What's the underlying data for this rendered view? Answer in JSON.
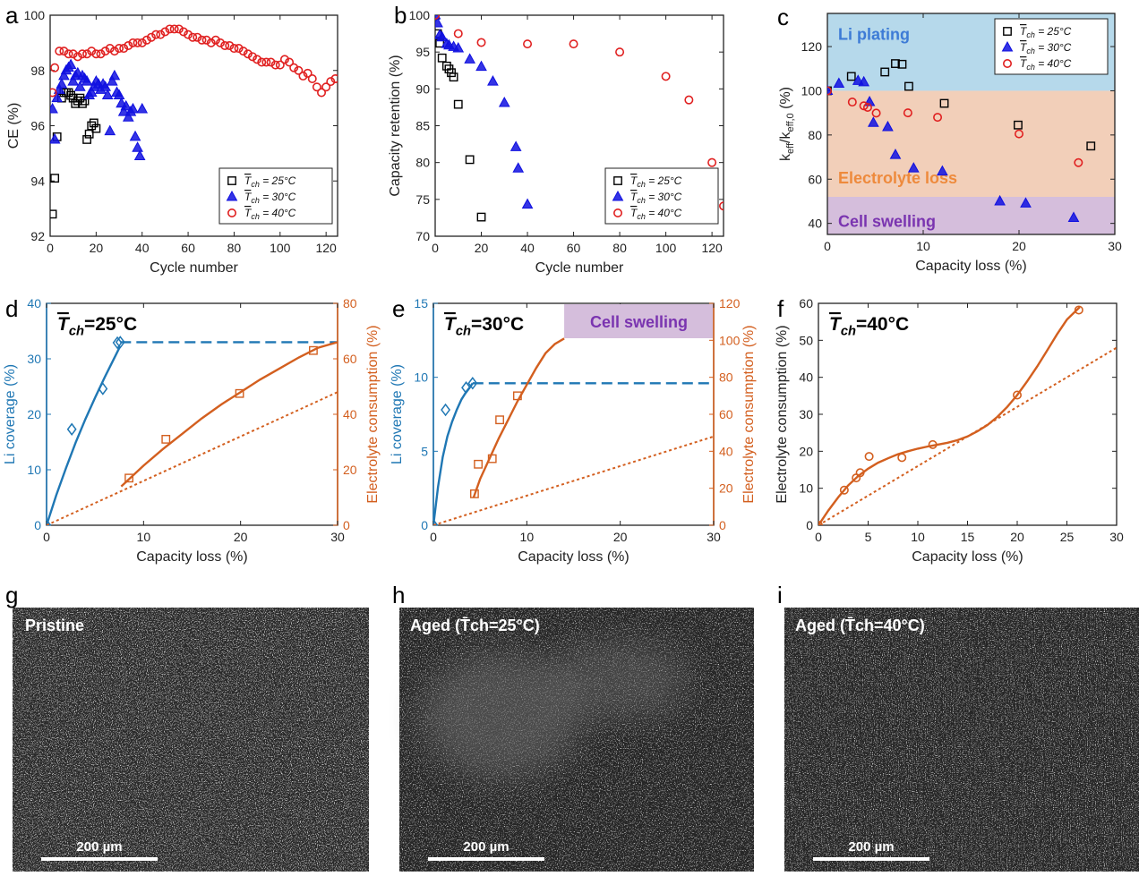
{
  "chart_data": [
    {
      "id": "a",
      "type": "scatter",
      "panel_letter": "a",
      "xlabel": "Cycle number",
      "ylabel": "CE (%)",
      "xlim": [
        0,
        125
      ],
      "ylim": [
        92,
        100
      ],
      "xticks": [
        0,
        20,
        40,
        60,
        80,
        100,
        120
      ],
      "yticks": [
        92,
        94,
        96,
        98,
        100
      ],
      "legend_position": "bottom-right",
      "series": [
        {
          "name": "T̄ch = 25°C",
          "marker": "square",
          "color": "#000000",
          "x": [
            1,
            2,
            3,
            5,
            6,
            7,
            8,
            9,
            10,
            11,
            12,
            13,
            14,
            15,
            16,
            17,
            18,
            19,
            20
          ],
          "y": [
            92.8,
            94.1,
            95.6,
            97.0,
            97.2,
            97.2,
            97.2,
            97.1,
            97.0,
            96.8,
            96.9,
            97.0,
            96.8,
            96.9,
            95.5,
            95.7,
            96.0,
            96.1,
            95.9
          ]
        },
        {
          "name": "T̄ch = 30°C",
          "marker": "triangle",
          "color": "#1010e0",
          "x": [
            1,
            2,
            3,
            4,
            5,
            6,
            7,
            8,
            9,
            10,
            11,
            12,
            13,
            14,
            15,
            16,
            17,
            18,
            19,
            20,
            21,
            22,
            23,
            24,
            25,
            26,
            27,
            28,
            29,
            30,
            31,
            32,
            33,
            34,
            35,
            36,
            37,
            38,
            39,
            40
          ],
          "y": [
            96.6,
            95.5,
            97.0,
            97.3,
            97.5,
            97.8,
            98.0,
            98.1,
            98.2,
            97.6,
            97.8,
            97.9,
            97.4,
            97.8,
            97.7,
            97.6,
            97.1,
            97.2,
            97.4,
            97.6,
            97.5,
            97.3,
            97.5,
            97.4,
            97.1,
            95.8,
            97.6,
            97.8,
            97.2,
            97.1,
            96.8,
            96.5,
            96.7,
            96.3,
            96.5,
            96.6,
            95.6,
            95.2,
            94.9,
            96.6
          ]
        },
        {
          "name": "T̄ch = 40°C",
          "marker": "circle",
          "color": "#e02020",
          "x": [
            1,
            2,
            4,
            6,
            8,
            10,
            12,
            14,
            16,
            18,
            20,
            22,
            24,
            26,
            28,
            30,
            32,
            34,
            36,
            38,
            40,
            42,
            44,
            46,
            48,
            50,
            52,
            54,
            56,
            58,
            60,
            62,
            64,
            66,
            68,
            70,
            72,
            74,
            76,
            78,
            80,
            82,
            84,
            86,
            88,
            90,
            92,
            94,
            96,
            98,
            100,
            102,
            104,
            106,
            108,
            110,
            112,
            114,
            116,
            118,
            120,
            122,
            124
          ],
          "y": [
            97.2,
            98.1,
            98.7,
            98.7,
            98.6,
            98.6,
            98.5,
            98.6,
            98.6,
            98.7,
            98.6,
            98.6,
            98.7,
            98.8,
            98.7,
            98.8,
            98.8,
            98.9,
            99.0,
            99.0,
            99.0,
            99.1,
            99.2,
            99.3,
            99.3,
            99.4,
            99.5,
            99.5,
            99.5,
            99.4,
            99.3,
            99.2,
            99.2,
            99.1,
            99.1,
            99.0,
            99.1,
            99.0,
            98.9,
            98.9,
            98.8,
            98.8,
            98.7,
            98.6,
            98.5,
            98.4,
            98.3,
            98.3,
            98.3,
            98.2,
            98.2,
            98.4,
            98.3,
            98.1,
            98.0,
            97.8,
            97.9,
            97.7,
            97.4,
            97.2,
            97.4,
            97.6,
            97.7
          ]
        }
      ]
    },
    {
      "id": "b",
      "type": "scatter",
      "panel_letter": "b",
      "xlabel": "Cycle number",
      "ylabel": "Capacity retention (%)",
      "xlim": [
        0,
        125
      ],
      "ylim": [
        70,
        100
      ],
      "xticks": [
        0,
        20,
        40,
        60,
        80,
        100,
        120
      ],
      "yticks": [
        70,
        75,
        80,
        85,
        90,
        95,
        100
      ],
      "legend_position": "bottom-right",
      "series": [
        {
          "name": "T̄ch = 25°C",
          "marker": "square",
          "color": "#000000",
          "x": [
            0,
            1,
            2,
            3,
            5,
            6,
            7,
            8,
            10,
            15,
            20
          ],
          "y": [
            100,
            97.5,
            96.2,
            94.2,
            93.1,
            92.7,
            92.2,
            91.6,
            87.9,
            80.4,
            72.6
          ]
        },
        {
          "name": "T̄ch = 30°C",
          "marker": "triangle",
          "color": "#1010e0",
          "x": [
            0,
            1,
            2,
            3,
            5,
            6,
            8,
            10,
            15,
            20,
            25,
            30,
            35,
            36,
            40
          ],
          "y": [
            100,
            98.9,
            97.3,
            97.0,
            96.1,
            95.9,
            95.7,
            95.5,
            94.0,
            93.0,
            91.0,
            88.1,
            82.1,
            79.2,
            74.3
          ]
        },
        {
          "name": "T̄ch = 40°C",
          "marker": "circle",
          "color": "#e02020",
          "x": [
            0,
            10,
            20,
            40,
            60,
            80,
            100,
            110,
            120,
            125
          ],
          "y": [
            100,
            97.5,
            96.3,
            96.1,
            96.1,
            95.0,
            91.7,
            88.5,
            80.0,
            74.1
          ]
        }
      ]
    },
    {
      "id": "c",
      "type": "scatter",
      "panel_letter": "c",
      "xlabel": "Capacity loss (%)",
      "ylabel": "keff/keff,0 (%)",
      "xlim": [
        0,
        30
      ],
      "ylim": [
        35,
        135
      ],
      "xticks": [
        0,
        10,
        20,
        30
      ],
      "yticks": [
        40,
        60,
        80,
        100,
        120
      ],
      "legend_position": "top-right",
      "regions": [
        {
          "label": "Li plating",
          "ymin": 100,
          "ymax": 135,
          "color": "#b6d9eb",
          "text_color": "#3d7bd6"
        },
        {
          "label": "Electrolyte loss",
          "ymin": 52,
          "ymax": 100,
          "color": "#f2cfb9",
          "text_color": "#ee8a3c"
        },
        {
          "label": "Cell swelling",
          "ymin": 35,
          "ymax": 52,
          "color": "#d5bedc",
          "text_color": "#7a34b0"
        }
      ],
      "series": [
        {
          "name": "T̄ch = 25°C",
          "marker": "square",
          "color": "#000000",
          "x": [
            0,
            2.5,
            6.0,
            7.1,
            7.8,
            8.5,
            12.2,
            19.9,
            27.5
          ],
          "y": [
            100,
            106.5,
            108.5,
            112.3,
            112.0,
            102.0,
            94.3,
            84.5,
            75.0
          ]
        },
        {
          "name": "T̄ch = 30°C",
          "marker": "triangle",
          "color": "#1010e0",
          "x": [
            0,
            1.2,
            3.2,
            3.8,
            4.4,
            4.8,
            6.3,
            7.1,
            9.0,
            12.0,
            18.0,
            20.7,
            25.7
          ],
          "y": [
            100,
            103.2,
            104.5,
            103.9,
            94.9,
            85.5,
            83.6,
            71.0,
            64.9,
            63.5,
            50.0,
            49.0,
            42.5
          ]
        },
        {
          "name": "T̄ch = 40°C",
          "marker": "circle",
          "color": "#e02020",
          "x": [
            0,
            2.6,
            3.8,
            4.2,
            5.1,
            8.4,
            11.5,
            20.0,
            26.2
          ],
          "y": [
            100,
            94.9,
            93.2,
            92.5,
            89.9,
            90.0,
            88.0,
            80.5,
            67.5
          ]
        }
      ]
    },
    {
      "id": "d",
      "type": "line",
      "panel_letter": "d",
      "title": "T̄ch=25°C",
      "xlabel": "Capacity loss (%)",
      "ylabel": "Li coverage (%)",
      "ylabel2": "Electrolyte consumption (%)",
      "xlim": [
        0,
        30
      ],
      "ylim": [
        0,
        40
      ],
      "ylim2": [
        0,
        80
      ],
      "xticks": [
        0,
        10,
        20,
        30
      ],
      "yticks": [
        0,
        10,
        20,
        30,
        40
      ],
      "yticks2": [
        0,
        20,
        40,
        60,
        80
      ],
      "series": [
        {
          "name": "Li coverage",
          "axis": "left",
          "marker": "diamond",
          "color": "#1f77b4",
          "x": [
            0,
            2.6,
            5.8,
            7.3,
            7.6
          ],
          "y": [
            0,
            17.3,
            24.6,
            32.9,
            33.0
          ]
        },
        {
          "name": "Li coverage fit",
          "axis": "left",
          "style": "solid",
          "color": "#1f77b4",
          "x": [
            0,
            1,
            2,
            3,
            4,
            5,
            6,
            7,
            7.6
          ],
          "y": [
            0,
            5.4,
            10.3,
            14.9,
            19.1,
            23.0,
            26.7,
            30.2,
            32.3
          ]
        },
        {
          "name": "Li coverage plateau",
          "axis": "left",
          "style": "dashed",
          "color": "#1f77b4",
          "x": [
            7.6,
            30
          ],
          "y": [
            33.0,
            33.0
          ]
        },
        {
          "name": "Electrolyte consumption",
          "axis": "right",
          "marker": "square",
          "color": "#d35f1f",
          "x": [
            8.5,
            12.3,
            19.9,
            27.5
          ],
          "y": [
            17.0,
            31.0,
            47.5,
            63.0
          ]
        },
        {
          "name": "Electrolyte consumption fit",
          "axis": "right",
          "style": "solid",
          "color": "#d35f1f",
          "x": [
            7.7,
            10,
            12,
            14,
            16,
            18,
            20,
            22,
            24,
            26,
            28,
            30
          ],
          "y": [
            14,
            21.5,
            27.5,
            33,
            38.5,
            43.5,
            48,
            52.5,
            56.5,
            60.5,
            64,
            66
          ]
        },
        {
          "name": "Reference line",
          "axis": "right",
          "style": "dotted",
          "color": "#d35f1f",
          "x": [
            0,
            30
          ],
          "y": [
            0,
            48
          ]
        }
      ]
    },
    {
      "id": "e",
      "type": "line",
      "panel_letter": "e",
      "title": "T̄ch=30°C",
      "xlabel": "Capacity loss (%)",
      "ylabel": "Li coverage (%)",
      "ylabel2": "Electrolyte consumption (%)",
      "xlim": [
        0,
        30
      ],
      "ylim": [
        0,
        15
      ],
      "ylim2": [
        0,
        120
      ],
      "xticks": [
        0,
        10,
        20,
        30
      ],
      "yticks": [
        0,
        5,
        10,
        15
      ],
      "yticks2": [
        0,
        20,
        40,
        60,
        80,
        100,
        120
      ],
      "annotation": {
        "label": "Cell swelling",
        "color": "#d5bedc",
        "text_color": "#7a34b0"
      },
      "series": [
        {
          "name": "Li coverage",
          "axis": "left",
          "marker": "diamond",
          "color": "#1f77b4",
          "x": [
            0,
            1.3,
            3.5,
            4.2
          ],
          "y": [
            0,
            7.8,
            9.3,
            9.6
          ]
        },
        {
          "name": "Li coverage fit",
          "axis": "left",
          "style": "solid",
          "color": "#1f77b4",
          "x": [
            0,
            0.5,
            1,
            1.5,
            2,
            2.5,
            3,
            3.5,
            4,
            4.2
          ],
          "y": [
            0,
            2.6,
            4.6,
            6.0,
            7.0,
            7.8,
            8.5,
            9.0,
            9.4,
            9.6
          ]
        },
        {
          "name": "Li coverage plateau",
          "axis": "left",
          "style": "dashed",
          "color": "#1f77b4",
          "x": [
            4.2,
            30
          ],
          "y": [
            9.6,
            9.6
          ]
        },
        {
          "name": "Electrolyte consumption",
          "axis": "right",
          "marker": "square",
          "color": "#d35f1f",
          "x": [
            4.4,
            4.8,
            6.3,
            7.1,
            9.0
          ],
          "y": [
            17.0,
            33.0,
            36.0,
            57.0,
            70.0
          ]
        },
        {
          "name": "Electrolyte consumption fit",
          "axis": "right",
          "style": "solid",
          "color": "#d35f1f",
          "x": [
            4.3,
            5,
            6,
            7,
            8,
            9,
            10,
            11,
            12,
            13,
            14
          ],
          "y": [
            15,
            25,
            36,
            47,
            57,
            67,
            76,
            85,
            93,
            98,
            101
          ]
        },
        {
          "name": "Reference line",
          "axis": "right",
          "style": "dotted",
          "color": "#d35f1f",
          "x": [
            0,
            30
          ],
          "y": [
            0,
            48
          ]
        }
      ]
    },
    {
      "id": "f",
      "type": "line",
      "panel_letter": "f",
      "title": "T̄ch=40°C",
      "xlabel": "Capacity loss (%)",
      "ylabel": "Electrolyte consumption (%)",
      "xlim": [
        0,
        30
      ],
      "ylim": [
        0,
        60
      ],
      "xticks": [
        0,
        5,
        10,
        15,
        20,
        25,
        30
      ],
      "yticks": [
        0,
        10,
        20,
        30,
        40,
        50,
        60
      ],
      "series": [
        {
          "name": "Electrolyte consumption",
          "axis": "left",
          "marker": "circle",
          "color": "#d35f1f",
          "x": [
            0,
            2.6,
            3.8,
            4.2,
            5.1,
            8.4,
            11.5,
            20.0,
            26.2
          ],
          "y": [
            0,
            9.5,
            12.8,
            14.2,
            18.6,
            18.3,
            21.8,
            35.2,
            58.2
          ]
        },
        {
          "name": "Electrolyte consumption fit",
          "axis": "left",
          "style": "solid",
          "color": "#d35f1f",
          "x": [
            0,
            1,
            2,
            3,
            4,
            5,
            6,
            7,
            8,
            9,
            10,
            11,
            12,
            13,
            14,
            15,
            16,
            17,
            18,
            19,
            20,
            21,
            22,
            23,
            24,
            25,
            26.3
          ],
          "y": [
            0,
            4.0,
            7.6,
            10.8,
            13.3,
            15.3,
            16.9,
            18.1,
            19.2,
            20.0,
            20.7,
            21.3,
            21.8,
            22.3,
            23.0,
            24.0,
            25.4,
            27.1,
            29.3,
            32.0,
            35.2,
            38.9,
            42.9,
            47.2,
            51.6,
            55.6,
            59.0
          ]
        },
        {
          "name": "Reference line",
          "axis": "left",
          "style": "dotted",
          "color": "#d35f1f",
          "x": [
            0,
            30
          ],
          "y": [
            0,
            48
          ]
        }
      ]
    }
  ],
  "figure": {
    "panel_labels": {
      "a": "a",
      "b": "b",
      "c": "c",
      "d": "d",
      "e": "e",
      "f": "f",
      "g": "g",
      "h": "h",
      "i": "i"
    }
  },
  "images": [
    {
      "panel_letter": "g",
      "label": "Pristine",
      "scale_bar": "200 µm"
    },
    {
      "panel_letter": "h",
      "label": "Aged (T̄ch=25°C)",
      "scale_bar": "200 µm"
    },
    {
      "panel_letter": "i",
      "label": "Aged (T̄ch=40°C)",
      "scale_bar": "200 µm"
    }
  ],
  "colors": {
    "black": "#000000",
    "blue": "#1010e0",
    "red": "#e02020",
    "li_blue": "#1f77b4",
    "electrolyte_orange": "#d35f1f"
  }
}
